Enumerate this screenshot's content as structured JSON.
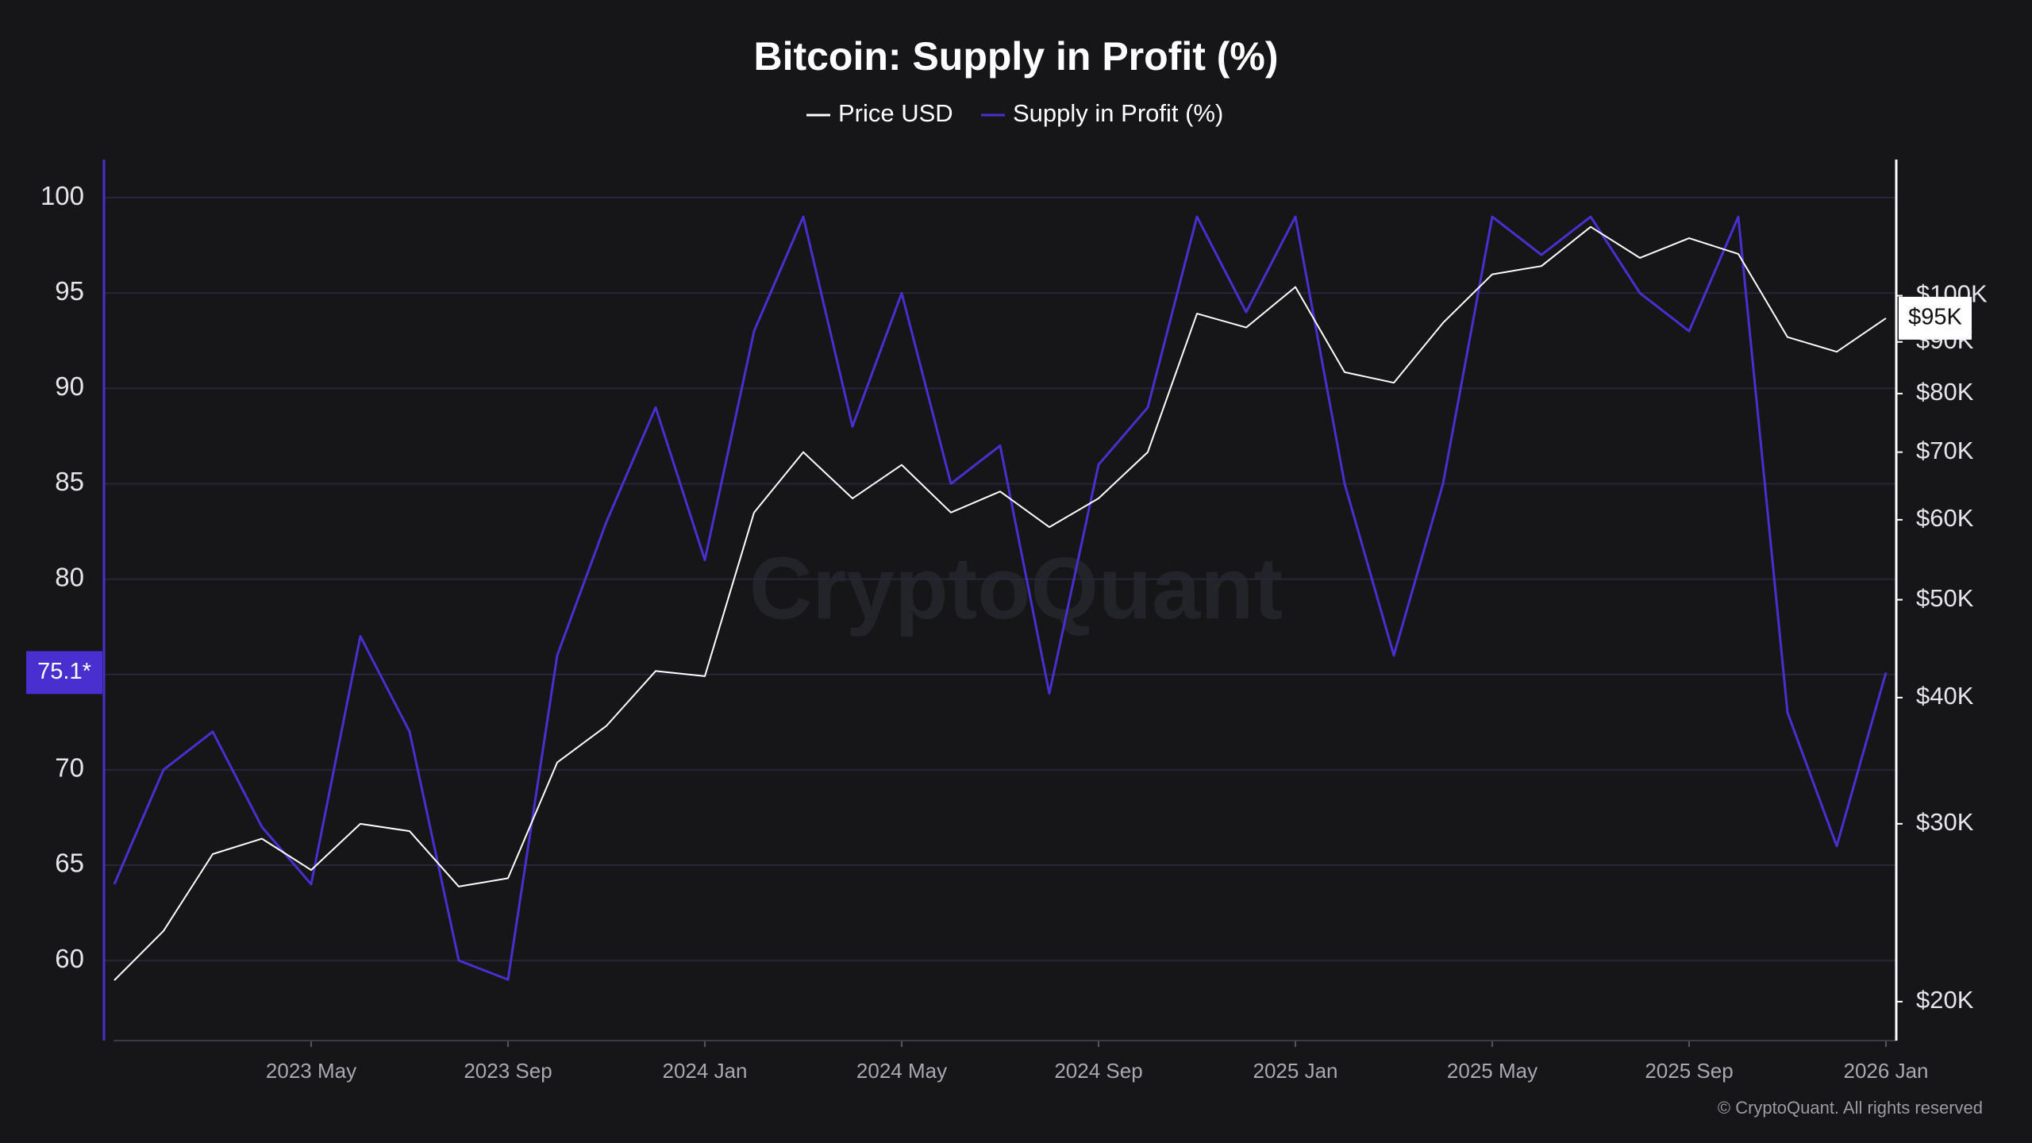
{
  "chart_data": {
    "type": "line",
    "title": "Bitcoin: Supply in Profit (%)",
    "watermark": "CryptoQuant",
    "copyright": "© CryptoQuant. All rights reserved",
    "x": [
      "2023-01",
      "2023-02",
      "2023-03",
      "2023-04",
      "2023-05",
      "2023-06",
      "2023-07",
      "2023-08",
      "2023-09",
      "2023-10",
      "2023-11",
      "2023-12",
      "2024-01",
      "2024-02",
      "2024-03",
      "2024-04",
      "2024-05",
      "2024-06",
      "2024-07",
      "2024-08",
      "2024-09",
      "2024-10",
      "2024-11",
      "2024-12",
      "2025-01",
      "2025-02",
      "2025-03",
      "2025-04",
      "2025-05",
      "2025-06",
      "2025-07",
      "2025-08",
      "2025-09",
      "2025-10",
      "2025-11",
      "2025-12",
      "2026-01"
    ],
    "xlim": [
      "2023-01",
      "2026-01"
    ],
    "xticks": [
      {
        "value": "2023-05",
        "label": "2023 May"
      },
      {
        "value": "2023-09",
        "label": "2023 Sep"
      },
      {
        "value": "2024-01",
        "label": "2024 Jan"
      },
      {
        "value": "2024-05",
        "label": "2024 May"
      },
      {
        "value": "2024-09",
        "label": "2024 Sep"
      },
      {
        "value": "2025-01",
        "label": "2025 Jan"
      },
      {
        "value": "2025-05",
        "label": "2025 May"
      },
      {
        "value": "2025-09",
        "label": "2025 Sep"
      },
      {
        "value": "2026-01",
        "label": "2026 Jan"
      }
    ],
    "ylim": [
      55.8,
      102
    ],
    "yticks": [
      60,
      65,
      70,
      75,
      80,
      85,
      90,
      95,
      100
    ],
    "y2lim": [
      18300,
      136400
    ],
    "y2scale": "log",
    "y2ticks": [
      {
        "value": 20000,
        "label": "$20K"
      },
      {
        "value": 30000,
        "label": "$30K"
      },
      {
        "value": 40000,
        "label": "$40K"
      },
      {
        "value": 50000,
        "label": "$50K"
      },
      {
        "value": 60000,
        "label": "$60K"
      },
      {
        "value": 70000,
        "label": "$70K"
      },
      {
        "value": 80000,
        "label": "$80K"
      },
      {
        "value": 90000,
        "label": "$90K"
      },
      {
        "value": 100000,
        "label": "$100K"
      }
    ],
    "grid": true,
    "legend": "top",
    "series": [
      {
        "name": "Price USD",
        "color": "#ffffff",
        "axis": "y2",
        "values": [
          21000,
          23500,
          28000,
          29000,
          27000,
          30000,
          29500,
          26000,
          26500,
          34500,
          37500,
          42500,
          42000,
          61000,
          70000,
          63000,
          68000,
          61000,
          64000,
          59000,
          63000,
          70000,
          96000,
          93000,
          102000,
          84000,
          82000,
          94000,
          105000,
          107000,
          117000,
          109000,
          114000,
          110000,
          91000,
          88000,
          95000
        ],
        "current": {
          "value": 95000,
          "label": "$95K"
        }
      },
      {
        "name": "Supply in Profit (%)",
        "color": "#4a2fd0",
        "values": [
          64,
          70,
          72,
          67,
          64,
          77,
          72,
          60,
          59,
          76,
          83,
          89,
          81,
          93,
          99,
          88,
          95,
          85,
          87,
          74,
          86,
          89,
          99,
          94,
          99,
          85,
          76,
          85,
          99,
          97,
          99,
          95,
          93,
          99,
          73,
          66,
          75.1
        ],
        "current": {
          "value": 75.1,
          "label": "75.1*"
        }
      }
    ]
  }
}
